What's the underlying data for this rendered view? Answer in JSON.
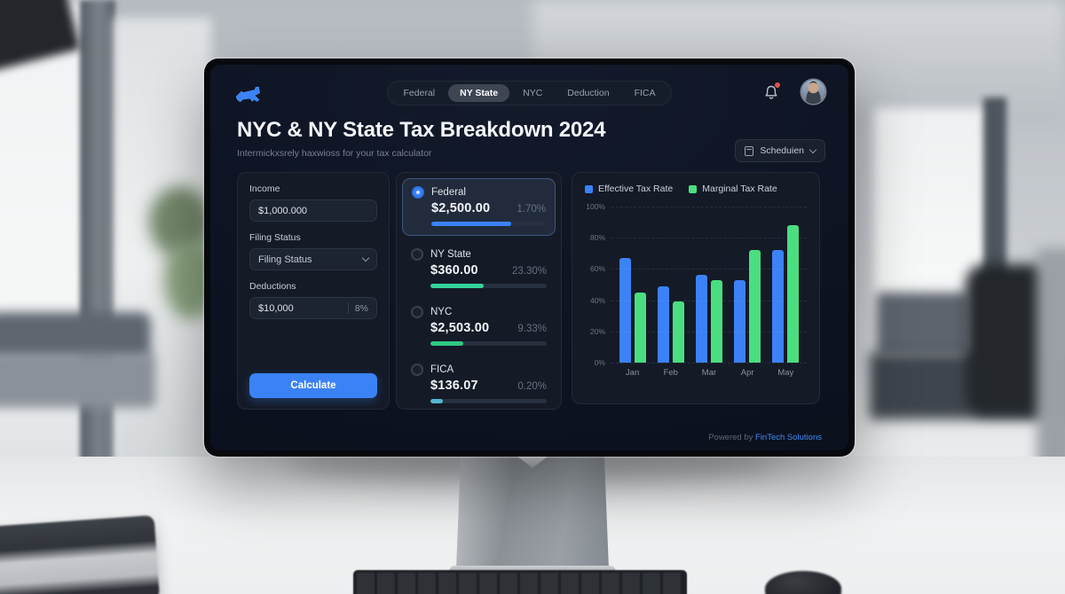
{
  "topbar": {
    "tabs": [
      {
        "label": "Federal"
      },
      {
        "label": "NY State"
      },
      {
        "label": "NYC"
      },
      {
        "label": "Deduction"
      },
      {
        "label": "FICA"
      }
    ],
    "active_tab": "NY State"
  },
  "header": {
    "title": "NYC & NY State Tax Breakdown 2024",
    "subtitle": "Intermickxsrely haxwioss for your tax calculator",
    "schedule_label": "Scheduien"
  },
  "form": {
    "income_label": "Income",
    "income_value": "$1,000.000",
    "filing_label": "Filing Status",
    "filing_value": "Filing Status",
    "deductions_label": "Deductions",
    "deductions_value": "$10,000",
    "deductions_percent": "8%",
    "calculate_label": "Calculate"
  },
  "breakdown": {
    "rows": [
      {
        "name": "Federal",
        "amount": "$2,500.00",
        "rate": "1.70%",
        "progress": 70,
        "color": "#3b82f6",
        "selected": true
      },
      {
        "name": "NY State",
        "amount": "$360.00",
        "rate": "23.30%",
        "progress": 46,
        "color": "#34d399",
        "selected": false
      },
      {
        "name": "NYC",
        "amount": "$2,503.00",
        "rate": "9.33%",
        "progress": 28,
        "color": "#2fc985",
        "selected": false
      },
      {
        "name": "FICA",
        "amount": "$136.07",
        "rate": "0.20%",
        "progress": 11,
        "color": "#56b4d3",
        "selected": false
      }
    ]
  },
  "chart_data": {
    "type": "bar",
    "title": "",
    "categories": [
      "Jan",
      "Feb",
      "Mar",
      "Apr",
      "May"
    ],
    "series": [
      {
        "name": "Effective Tax Rate",
        "color": "#3b82f6",
        "values": [
          67,
          49,
          56,
          53,
          72
        ]
      },
      {
        "name": "Marginal Tax Rate",
        "color": "#4ade80",
        "values": [
          45,
          39,
          53,
          72,
          88
        ]
      }
    ],
    "xlabel": "",
    "ylabel": "",
    "ylim": [
      0,
      100
    ],
    "yticks": [
      "100%",
      "80%",
      "60%",
      "40%",
      "20%",
      "0%"
    ],
    "grid": true,
    "legend_position": "top"
  },
  "footer": {
    "powered_by": "Powered by",
    "brand": "FinTech Solutions"
  },
  "colors": {
    "accent": "#3b82f6",
    "green": "#34d399",
    "screen_bg": "#0d1322"
  }
}
